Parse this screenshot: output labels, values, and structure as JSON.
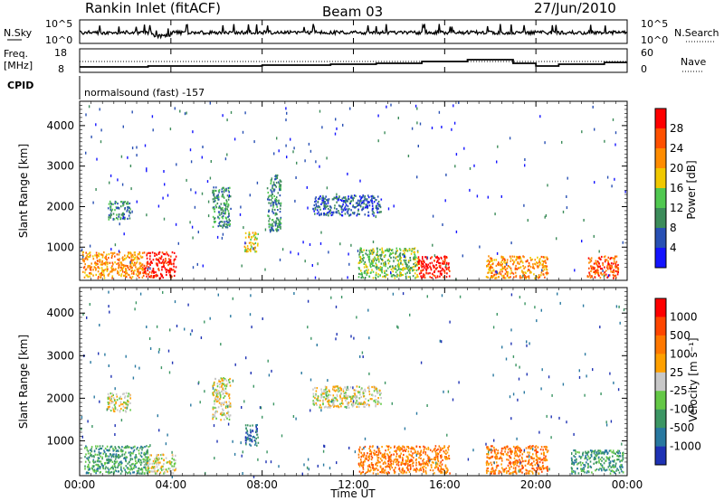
{
  "header": {
    "station": "Rankin Inlet (fitACF)",
    "beam": "Beam 03",
    "date": "27/Jun/2010"
  },
  "strip_panels": {
    "nsky_label": "N.Sky",
    "nsky_ticks": [
      "10^5",
      "10^0"
    ],
    "nsearch_label": "N.Search",
    "nsearch_ticks": [
      "10^5",
      "10^0"
    ],
    "freq_label": "Freq.",
    "freq_unit": "[MHz]",
    "freq_ticks": [
      "18",
      "8"
    ],
    "nave_label": "Nave",
    "nave_ticks": [
      "60",
      "0"
    ],
    "cpid_label": "CPID",
    "cpid_text": "normalsound (fast) -157"
  },
  "colors": {
    "power": [
      "#1414ff",
      "#2850b4",
      "#3c8c5a",
      "#50c850",
      "#f0c800",
      "#ff8c00",
      "#ff5000",
      "#ff0000"
    ],
    "velocity": [
      "#1e32b4",
      "#2878a0",
      "#3c9664",
      "#64c846",
      "#c8c8c8",
      "#ffa000",
      "#ff7800",
      "#ff4600",
      "#ff0000"
    ]
  },
  "chart_data": [
    {
      "type": "heatmap",
      "panel": "power",
      "xlabel": "",
      "ylabel": "Slant Range [km]",
      "xlim": [
        0,
        24
      ],
      "ylim": [
        180,
        4600
      ],
      "y_ticks": [
        "1000",
        "2000",
        "3000",
        "4000"
      ],
      "colorbar": {
        "label": "Power [dB]",
        "ticks": [
          "4",
          "8",
          "12",
          "16",
          "20",
          "24",
          "28"
        ],
        "range": [
          0,
          32
        ]
      },
      "echo_regions": [
        {
          "t": [
            0.1,
            2.8
          ],
          "r": [
            250,
            900
          ],
          "level": 5
        },
        {
          "t": [
            2.8,
            4.2
          ],
          "r": [
            250,
            900
          ],
          "level": 7
        },
        {
          "t": [
            1.2,
            2.2
          ],
          "r": [
            1700,
            2150
          ],
          "level": 2
        },
        {
          "t": [
            5.8,
            6.6
          ],
          "r": [
            1500,
            2500
          ],
          "level": 2
        },
        {
          "t": [
            7.2,
            7.8
          ],
          "r": [
            900,
            1400
          ],
          "level": 4
        },
        {
          "t": [
            8.2,
            8.8
          ],
          "r": [
            1400,
            2800
          ],
          "level": 2
        },
        {
          "t": [
            10.2,
            13.2
          ],
          "r": [
            1800,
            2300
          ],
          "level": 1
        },
        {
          "t": [
            12.2,
            14.8
          ],
          "r": [
            250,
            1000
          ],
          "level": 3
        },
        {
          "t": [
            14.8,
            16.2
          ],
          "r": [
            250,
            800
          ],
          "level": 7
        },
        {
          "t": [
            17.8,
            20.5
          ],
          "r": [
            250,
            800
          ],
          "level": 5
        },
        {
          "t": [
            22.2,
            23.6
          ],
          "r": [
            250,
            800
          ],
          "level": 6
        }
      ]
    },
    {
      "type": "heatmap",
      "panel": "velocity",
      "xlabel": "Time UT",
      "ylabel": "Slant Range [km]",
      "xlim": [
        0,
        24
      ],
      "ylim": [
        180,
        4600
      ],
      "x_ticks": [
        "00:00",
        "04:00",
        "08:00",
        "12:00",
        "16:00",
        "20:00",
        "00:00"
      ],
      "y_ticks": [
        "1000",
        "2000",
        "3000",
        "4000"
      ],
      "colorbar": {
        "label": "Velocity [m s⁻¹]",
        "ticks": [
          "1000",
          "500",
          "100",
          "25",
          "-25",
          "-100",
          "-500",
          "-1000"
        ]
      },
      "echo_regions": [
        {
          "t": [
            0.2,
            3.0
          ],
          "r": [
            250,
            900
          ],
          "level": 2
        },
        {
          "t": [
            2.8,
            4.2
          ],
          "r": [
            250,
            700
          ],
          "level": 4
        },
        {
          "t": [
            1.2,
            2.2
          ],
          "r": [
            1700,
            2150
          ],
          "level": 4
        },
        {
          "t": [
            5.8,
            6.6
          ],
          "r": [
            1500,
            2500
          ],
          "level": 4
        },
        {
          "t": [
            7.2,
            7.8
          ],
          "r": [
            900,
            1400
          ],
          "level": 1
        },
        {
          "t": [
            10.2,
            13.2
          ],
          "r": [
            1800,
            2300
          ],
          "level": 4
        },
        {
          "t": [
            12.2,
            16.2
          ],
          "r": [
            250,
            900
          ],
          "level": 6
        },
        {
          "t": [
            17.8,
            20.5
          ],
          "r": [
            250,
            900
          ],
          "level": 6
        },
        {
          "t": [
            21.5,
            23.8
          ],
          "r": [
            250,
            800
          ],
          "level": 2
        }
      ]
    }
  ]
}
